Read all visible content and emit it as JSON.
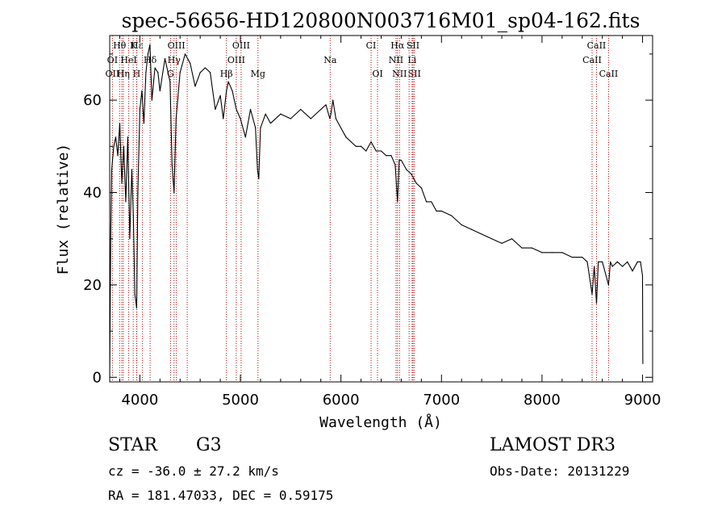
{
  "chart_data": {
    "type": "line",
    "title": "spec-56656-HD120800N003716M01_sp04-162.fits",
    "xlabel": "Wavelength (Å)",
    "ylabel": "Flux (relative)",
    "xlim": [
      3700,
      9100
    ],
    "ylim": [
      -1,
      74
    ],
    "x_ticks": [
      4000,
      5000,
      6000,
      7000,
      8000,
      9000
    ],
    "x_tick_labels": [
      "4000",
      "5000",
      "6000",
      "7000",
      "8000",
      "9000"
    ],
    "y_ticks": [
      0,
      20,
      40,
      60
    ],
    "y_tick_labels": [
      "0",
      "20",
      "40",
      "60"
    ],
    "series": [
      {
        "name": "spectrum",
        "x": [
          3700,
          3710,
          3720,
          3740,
          3760,
          3780,
          3800,
          3820,
          3840,
          3860,
          3880,
          3900,
          3920,
          3935,
          3950,
          3968,
          3980,
          4000,
          4020,
          4040,
          4060,
          4080,
          4100,
          4120,
          4150,
          4180,
          4200,
          4250,
          4300,
          4320,
          4340,
          4360,
          4400,
          4450,
          4500,
          4550,
          4600,
          4650,
          4700,
          4750,
          4800,
          4830,
          4861,
          4880,
          4920,
          4960,
          5000,
          5050,
          5100,
          5150,
          5170,
          5183,
          5200,
          5250,
          5300,
          5400,
          5500,
          5600,
          5700,
          5800,
          5850,
          5890,
          5900,
          5920,
          5950,
          6000,
          6050,
          6100,
          6150,
          6200,
          6250,
          6300,
          6350,
          6400,
          6450,
          6500,
          6540,
          6563,
          6580,
          6600,
          6650,
          6700,
          6750,
          6800,
          6850,
          6900,
          6950,
          7000,
          7100,
          7200,
          7300,
          7400,
          7500,
          7600,
          7700,
          7800,
          7900,
          8000,
          8100,
          8200,
          8300,
          8400,
          8450,
          8498,
          8520,
          8542,
          8560,
          8600,
          8662,
          8680,
          8700,
          8750,
          8800,
          8850,
          8900,
          8950,
          8980,
          9000,
          9003
        ],
        "values": [
          0,
          30,
          45,
          50,
          52,
          48,
          55,
          42,
          50,
          38,
          52,
          30,
          45,
          35,
          18,
          15,
          40,
          58,
          62,
          55,
          66,
          70,
          72,
          60,
          67,
          66,
          62,
          69,
          64,
          46,
          40,
          56,
          66,
          70,
          68,
          63,
          66,
          67,
          66,
          58,
          61,
          56,
          62,
          64,
          62,
          58,
          56,
          52,
          58,
          54,
          45,
          43,
          54,
          57,
          55,
          57,
          56,
          58,
          56,
          58,
          59,
          56,
          57,
          60,
          56,
          54,
          52,
          51,
          50,
          50,
          49,
          51,
          49,
          49,
          48,
          48,
          46,
          38,
          47,
          47,
          45,
          44,
          42,
          41,
          38,
          38,
          36,
          36,
          35,
          33,
          32,
          31,
          30,
          29,
          30,
          28,
          28,
          27,
          27,
          27,
          26,
          26,
          25,
          18,
          24,
          16,
          25,
          25,
          20,
          25,
          24,
          25,
          24,
          25,
          23,
          25,
          25,
          22,
          3
        ]
      }
    ],
    "spectral_lines": [
      {
        "label": "Hθ",
        "wavelength": 3798,
        "row": 0
      },
      {
        "label": "K",
        "wavelength": 3934,
        "row": 0
      },
      {
        "label": "Hε",
        "wavelength": 3970,
        "row": 0
      },
      {
        "label": "OIII",
        "wavelength": 4363,
        "row": 0
      },
      {
        "label": "OIII",
        "wavelength": 5007,
        "row": 0
      },
      {
        "label": "CI",
        "wavelength": 6300,
        "row": 0
      },
      {
        "label": "Hα",
        "wavelength": 6563,
        "row": 0
      },
      {
        "label": "SII",
        "wavelength": 6717,
        "row": 0
      },
      {
        "label": "CaII",
        "wavelength": 8542,
        "row": 0
      },
      {
        "label": "OI",
        "wavelength": 3727,
        "row": 1
      },
      {
        "label": "HeI",
        "wavelength": 3889,
        "row": 1
      },
      {
        "label": "Hδ",
        "wavelength": 4102,
        "row": 1
      },
      {
        "label": "Hγ",
        "wavelength": 4340,
        "row": 1
      },
      {
        "label": "OIII",
        "wavelength": 4959,
        "row": 1
      },
      {
        "label": "Na",
        "wavelength": 5893,
        "row": 1
      },
      {
        "label": "NII",
        "wavelength": 6548,
        "row": 1
      },
      {
        "label": "Li",
        "wavelength": 6708,
        "row": 1
      },
      {
        "label": "CaII",
        "wavelength": 8498,
        "row": 1
      },
      {
        "label": "OII",
        "wavelength": 3727,
        "row": 2
      },
      {
        "label": "Hη",
        "wavelength": 3835,
        "row": 2
      },
      {
        "label": "H",
        "wavelength": 3968,
        "row": 2
      },
      {
        "label": "G",
        "wavelength": 4305,
        "row": 2
      },
      {
        "label": "Hβ",
        "wavelength": 4861,
        "row": 2
      },
      {
        "label": "Mg",
        "wavelength": 5175,
        "row": 2
      },
      {
        "label": "OI",
        "wavelength": 6364,
        "row": 2
      },
      {
        "label": "NII",
        "wavelength": 6583,
        "row": 2
      },
      {
        "label": "SII",
        "wavelength": 6731,
        "row": 2
      },
      {
        "label": "CaII",
        "wavelength": 8662,
        "row": 2
      }
    ],
    "extra_line_markers": [
      3820,
      3889,
      4026,
      4471,
      6678,
      6716
    ]
  },
  "info": {
    "object_class": "STAR",
    "subclass": "G3",
    "survey": "LAMOST DR3",
    "redshift": "cz = -36.0 ± 27.2 km/s",
    "obs_date": "Obs-Date: 20131229",
    "coords": "RA = 181.47033, DEC =    0.59175"
  },
  "colors": {
    "line_marker": "#c00000",
    "spectrum": "#000000",
    "axis": "#000000"
  }
}
